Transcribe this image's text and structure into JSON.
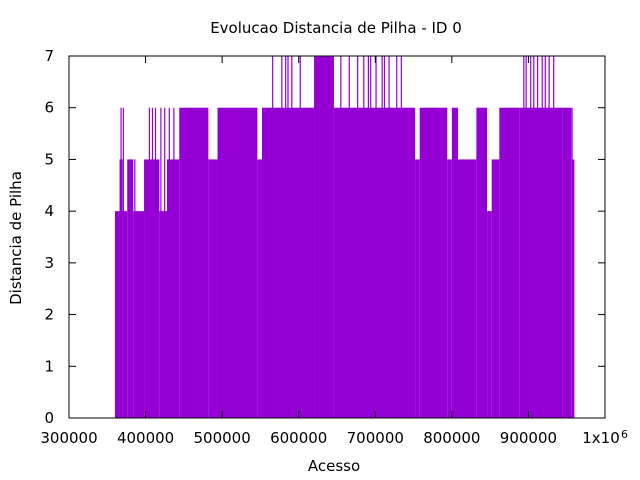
{
  "chart_data": {
    "type": "impulse",
    "title": "Evolucao Distancia de Pilha - ID 0",
    "xlabel": "Acesso",
    "ylabel": "Distancia de Pilha",
    "x_multiplier_label": "x10",
    "x_multiplier_exponent": "6",
    "xlim": [
      300000,
      1000000
    ],
    "ylim": [
      0,
      7
    ],
    "x_ticks": [
      {
        "value": 300000,
        "label": "300000"
      },
      {
        "value": 400000,
        "label": "400000"
      },
      {
        "value": 500000,
        "label": "500000"
      },
      {
        "value": 600000,
        "label": "600000"
      },
      {
        "value": 700000,
        "label": "700000"
      },
      {
        "value": 800000,
        "label": "800000"
      },
      {
        "value": 900000,
        "label": "900000"
      },
      {
        "value": 1000000,
        "label": "1x10"
      }
    ],
    "y_ticks": [
      {
        "value": 0,
        "label": "0"
      },
      {
        "value": 1,
        "label": "1"
      },
      {
        "value": 2,
        "label": "2"
      },
      {
        "value": 3,
        "label": "3"
      },
      {
        "value": 4,
        "label": "4"
      },
      {
        "value": 5,
        "label": "5"
      },
      {
        "value": 6,
        "label": "6"
      },
      {
        "value": 7,
        "label": "7"
      }
    ],
    "color": "#9400d3",
    "grid": false,
    "series": [
      {
        "segments": [
          {
            "x_start": 360000,
            "x_end": 366000,
            "y": 4
          },
          {
            "x_start": 366000,
            "x_end": 370000,
            "y": 5
          },
          {
            "x_start": 370000,
            "x_end": 376000,
            "y": 4
          },
          {
            "x_start": 376000,
            "x_end": 384000,
            "y": 5
          },
          {
            "x_start": 384000,
            "x_end": 398000,
            "y": 4
          },
          {
            "x_start": 398000,
            "x_end": 418000,
            "y": 5
          },
          {
            "x_start": 418000,
            "x_end": 428000,
            "y": 4
          },
          {
            "x_start": 428000,
            "x_end": 444000,
            "y": 5
          },
          {
            "x_start": 444000,
            "x_end": 482000,
            "y": 6
          },
          {
            "x_start": 482000,
            "x_end": 494000,
            "y": 5
          },
          {
            "x_start": 494000,
            "x_end": 546000,
            "y": 6
          },
          {
            "x_start": 546000,
            "x_end": 552000,
            "y": 5
          },
          {
            "x_start": 552000,
            "x_end": 620000,
            "y": 6
          },
          {
            "x_start": 620000,
            "x_end": 646000,
            "y": 7
          },
          {
            "x_start": 646000,
            "x_end": 752000,
            "y": 6
          },
          {
            "x_start": 752000,
            "x_end": 758000,
            "y": 5
          },
          {
            "x_start": 758000,
            "x_end": 794000,
            "y": 6
          },
          {
            "x_start": 794000,
            "x_end": 800000,
            "y": 5
          },
          {
            "x_start": 800000,
            "x_end": 808000,
            "y": 6
          },
          {
            "x_start": 808000,
            "x_end": 832000,
            "y": 5
          },
          {
            "x_start": 832000,
            "x_end": 846000,
            "y": 6
          },
          {
            "x_start": 846000,
            "x_end": 852000,
            "y": 4
          },
          {
            "x_start": 852000,
            "x_end": 862000,
            "y": 5
          },
          {
            "x_start": 862000,
            "x_end": 888000,
            "y": 6
          },
          {
            "x_start": 888000,
            "x_end": 944000,
            "y": 6
          },
          {
            "x_start": 944000,
            "x_end": 956000,
            "y": 6
          },
          {
            "x_start": 956000,
            "x_end": 960000,
            "y": 5
          }
        ],
        "spikes": [
          {
            "x": 368000,
            "y": 6
          },
          {
            "x": 371000,
            "y": 6
          },
          {
            "x": 381000,
            "y": 5
          },
          {
            "x": 386000,
            "y": 5
          },
          {
            "x": 405000,
            "y": 6
          },
          {
            "x": 409000,
            "y": 6
          },
          {
            "x": 413000,
            "y": 6
          },
          {
            "x": 420000,
            "y": 6
          },
          {
            "x": 425000,
            "y": 6
          },
          {
            "x": 431000,
            "y": 6
          },
          {
            "x": 437000,
            "y": 6
          },
          {
            "x": 566000,
            "y": 7
          },
          {
            "x": 578000,
            "y": 7
          },
          {
            "x": 583000,
            "y": 7
          },
          {
            "x": 586000,
            "y": 7
          },
          {
            "x": 591000,
            "y": 7
          },
          {
            "x": 602000,
            "y": 7
          },
          {
            "x": 655000,
            "y": 7
          },
          {
            "x": 666000,
            "y": 7
          },
          {
            "x": 677000,
            "y": 7
          },
          {
            "x": 685000,
            "y": 7
          },
          {
            "x": 691000,
            "y": 7
          },
          {
            "x": 694000,
            "y": 7
          },
          {
            "x": 701000,
            "y": 7
          },
          {
            "x": 709000,
            "y": 7
          },
          {
            "x": 712000,
            "y": 7
          },
          {
            "x": 718000,
            "y": 7
          },
          {
            "x": 728000,
            "y": 7
          },
          {
            "x": 734000,
            "y": 7
          },
          {
            "x": 894000,
            "y": 7
          },
          {
            "x": 897000,
            "y": 7
          },
          {
            "x": 903000,
            "y": 7
          },
          {
            "x": 907000,
            "y": 7
          },
          {
            "x": 912000,
            "y": 7
          },
          {
            "x": 918000,
            "y": 7
          },
          {
            "x": 922000,
            "y": 7
          },
          {
            "x": 927000,
            "y": 7
          },
          {
            "x": 933000,
            "y": 7
          },
          {
            "x": 952000,
            "y": 5
          },
          {
            "x": 957000,
            "y": 6
          }
        ]
      }
    ]
  }
}
